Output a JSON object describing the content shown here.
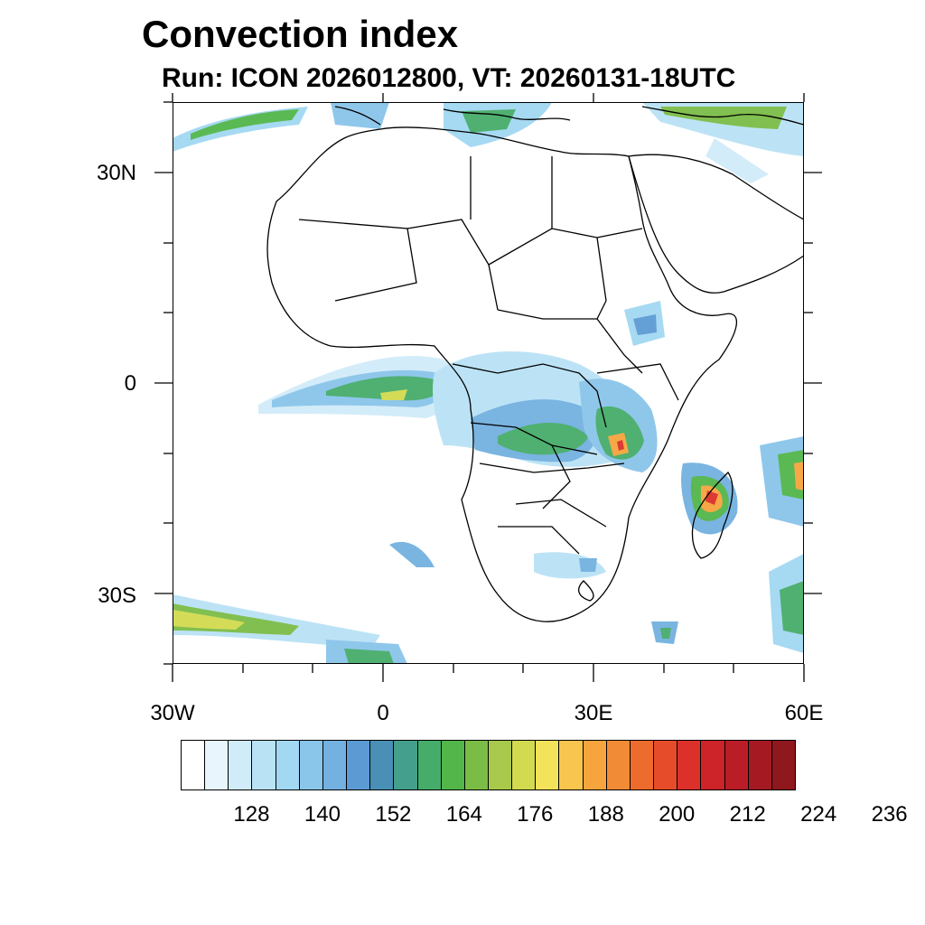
{
  "title": "Convection index",
  "subtitle": "Run: ICON 2026012800,  VT: 20260131-18UTC",
  "axes": {
    "x_labels": [
      "30W",
      "0",
      "30E",
      "60E"
    ],
    "y_labels": [
      "30N",
      "0",
      "30S"
    ]
  },
  "colorbar": {
    "colors": [
      "#ffffff",
      "#e8f5fc",
      "#d1ecf9",
      "#b9e2f5",
      "#a2d8f2",
      "#8ac5ea",
      "#73b1e0",
      "#5c9ad3",
      "#4a8fb5",
      "#44a08c",
      "#46ac6a",
      "#52b64a",
      "#7bbc47",
      "#a8c94c",
      "#d2db4f",
      "#f2e35a",
      "#f8c54e",
      "#f6a43e",
      "#f28b36",
      "#ee6b2e",
      "#e74c2a",
      "#dc302a",
      "#cc2428",
      "#bb1d26",
      "#a51a22",
      "#8f171e"
    ],
    "labels": [
      "128",
      "140",
      "152",
      "164",
      "176",
      "188",
      "200",
      "212",
      "224",
      "236"
    ]
  }
}
